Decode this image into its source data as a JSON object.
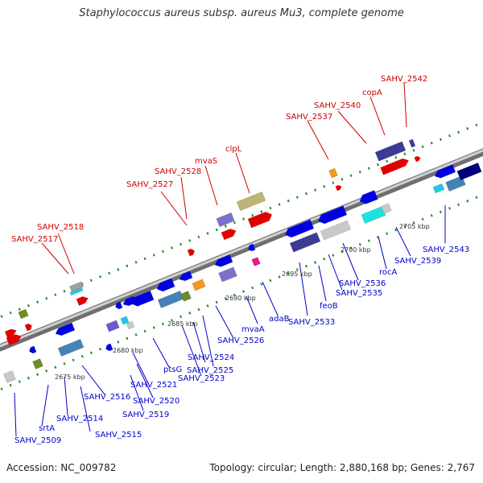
{
  "title": "Staphylococcus aureus subsp. aureus Mu3, complete genome",
  "footer": {
    "accession": "Accession: NC_009782",
    "topology": "Topology: circular; Length: 2,880,168 bp; Genes: 2,767"
  },
  "colors": {
    "forward_label": "#cc0000",
    "reverse_label": "#0000cc",
    "backbone": "#8c8c8c",
    "tick": "#1e8a1e"
  },
  "kbp_labels": [
    "2675 kbp",
    "2680 kbp",
    "2685 kbp",
    "2690 kbp",
    "2695 kbp",
    "2700 kbp",
    "2705 kbp"
  ],
  "forward_labels": [
    "SAHV_2517",
    "SAHV_2518",
    "SAHV_2527",
    "SAHV_2528",
    "mvaS",
    "clpL",
    "SAHV_2537",
    "SAHV_2540",
    "copA",
    "SAHV_2542"
  ],
  "reverse_labels": [
    "SAHV_2509",
    "srtA",
    "SAHV_2514",
    "SAHV_2515",
    "SAHV_2516",
    "SAHV_2519",
    "SAHV_2520",
    "SAHV_2521",
    "ptsG",
    "SAHV_2523",
    "SAHV_2524",
    "SAHV_2525",
    "SAHV_2526",
    "mvaA",
    "adaB",
    "SAHV_2533",
    "feoB",
    "SAHV_2535",
    "SAHV_2536",
    "rocA",
    "SAHV_2539",
    "SAHV_2543"
  ]
}
